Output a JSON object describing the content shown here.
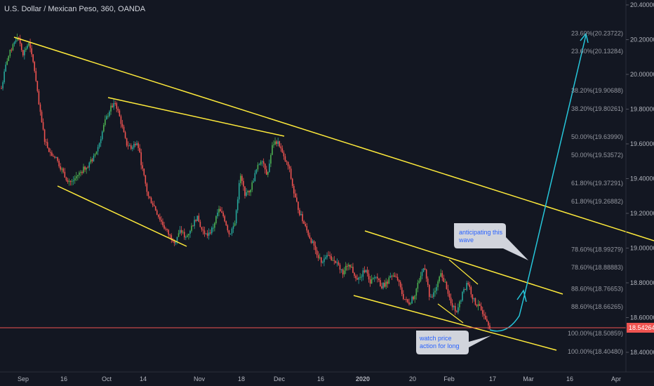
{
  "header": {
    "title": "U.S. Dollar / Mexican Peso, 360, OANDA"
  },
  "colors": {
    "background": "#131722",
    "up": "#26a69a",
    "up_bright": "#4caf50",
    "down": "#ef5350",
    "trendline": "#ffeb3b",
    "arrow": "#26c6da",
    "current_price_line": "#ef5350",
    "callout": "#d1d4dc"
  },
  "chart_data": {
    "type": "candlestick",
    "symbol": "USDMXN",
    "interval": "360",
    "source": "OANDA",
    "y_axis": {
      "ticks": [
        "20.40000",
        "20.20000",
        "20.00000",
        "19.80000",
        "19.60000",
        "19.40000",
        "19.20000",
        "19.00000",
        "18.80000",
        "18.60000",
        "18.40000"
      ],
      "range": [
        18.35,
        20.42
      ]
    },
    "x_axis": {
      "ticks": [
        "Sep",
        "16",
        "Oct",
        "14",
        "Nov",
        "18",
        "Dec",
        "16",
        "2020",
        "20",
        "Feb",
        "17",
        "Mar",
        "16",
        "Apr"
      ]
    },
    "current_price": "18.54264",
    "fib_levels": [
      "23.60%(20.23722)",
      "23.60%(20.13284)",
      "38.20%(19.90688)",
      "38.20%(19.80261)",
      "50.00%(19.63990)",
      "50.00%(19.53572)",
      "61.80%(19.37291)",
      "61.80%(19.26882)",
      "78.60%(18.99279)",
      "78.60%(18.88883)",
      "88.60%(18.76653)",
      "88.60%(18.66265)",
      "100.00%(18.50859)",
      "100.00%(18.40480)"
    ],
    "annotations": [
      "anticipating this wave",
      "watch price action for long"
    ],
    "price_path": [
      [
        0,
        19.92
      ],
      [
        1,
        20.08
      ],
      [
        2,
        20.16
      ],
      [
        3,
        20.23
      ],
      [
        4,
        20.12
      ],
      [
        5,
        20.18
      ],
      [
        6,
        20.05
      ],
      [
        7,
        19.8
      ],
      [
        8,
        19.62
      ],
      [
        9,
        19.55
      ],
      [
        10,
        19.52
      ],
      [
        11,
        19.46
      ],
      [
        12,
        19.4
      ],
      [
        13,
        19.38
      ],
      [
        14,
        19.42
      ],
      [
        15,
        19.45
      ],
      [
        16,
        19.48
      ],
      [
        17,
        19.52
      ],
      [
        18,
        19.6
      ],
      [
        19,
        19.72
      ],
      [
        20,
        19.8
      ],
      [
        21,
        19.84
      ],
      [
        22,
        19.73
      ],
      [
        23,
        19.6
      ],
      [
        24,
        19.58
      ],
      [
        25,
        19.62
      ],
      [
        26,
        19.45
      ],
      [
        27,
        19.3
      ],
      [
        28,
        19.25
      ],
      [
        29,
        19.18
      ],
      [
        30,
        19.12
      ],
      [
        31,
        19.07
      ],
      [
        32,
        19.04
      ],
      [
        33,
        19.1
      ],
      [
        34,
        19.06
      ],
      [
        35,
        19.12
      ],
      [
        36,
        19.18
      ],
      [
        37,
        19.1
      ],
      [
        38,
        19.07
      ],
      [
        39,
        19.12
      ],
      [
        40,
        19.22
      ],
      [
        41,
        19.18
      ],
      [
        42,
        19.08
      ],
      [
        43,
        19.14
      ],
      [
        44,
        19.42
      ],
      [
        45,
        19.3
      ],
      [
        46,
        19.35
      ],
      [
        47,
        19.45
      ],
      [
        48,
        19.52
      ],
      [
        49,
        19.42
      ],
      [
        50,
        19.6
      ],
      [
        51,
        19.62
      ],
      [
        52,
        19.52
      ],
      [
        53,
        19.46
      ],
      [
        54,
        19.3
      ],
      [
        55,
        19.2
      ],
      [
        56,
        19.12
      ],
      [
        57,
        19.05
      ],
      [
        58,
        18.98
      ],
      [
        59,
        18.92
      ],
      [
        60,
        18.96
      ],
      [
        61,
        18.94
      ],
      [
        62,
        18.9
      ],
      [
        63,
        18.86
      ],
      [
        64,
        18.92
      ],
      [
        65,
        18.85
      ],
      [
        66,
        18.82
      ],
      [
        67,
        18.88
      ],
      [
        68,
        18.8
      ],
      [
        69,
        18.84
      ],
      [
        70,
        18.78
      ],
      [
        71,
        18.8
      ],
      [
        72,
        18.84
      ],
      [
        73,
        18.82
      ],
      [
        74,
        18.72
      ],
      [
        75,
        18.68
      ],
      [
        76,
        18.72
      ],
      [
        77,
        18.82
      ],
      [
        78,
        18.9
      ],
      [
        79,
        18.7
      ],
      [
        80,
        18.76
      ],
      [
        81,
        18.85
      ],
      [
        82,
        18.78
      ],
      [
        83,
        18.66
      ],
      [
        84,
        18.64
      ],
      [
        85,
        18.74
      ],
      [
        86,
        18.8
      ],
      [
        87,
        18.7
      ],
      [
        88,
        18.66
      ],
      [
        89,
        18.62
      ],
      [
        90,
        18.55
      ]
    ]
  }
}
